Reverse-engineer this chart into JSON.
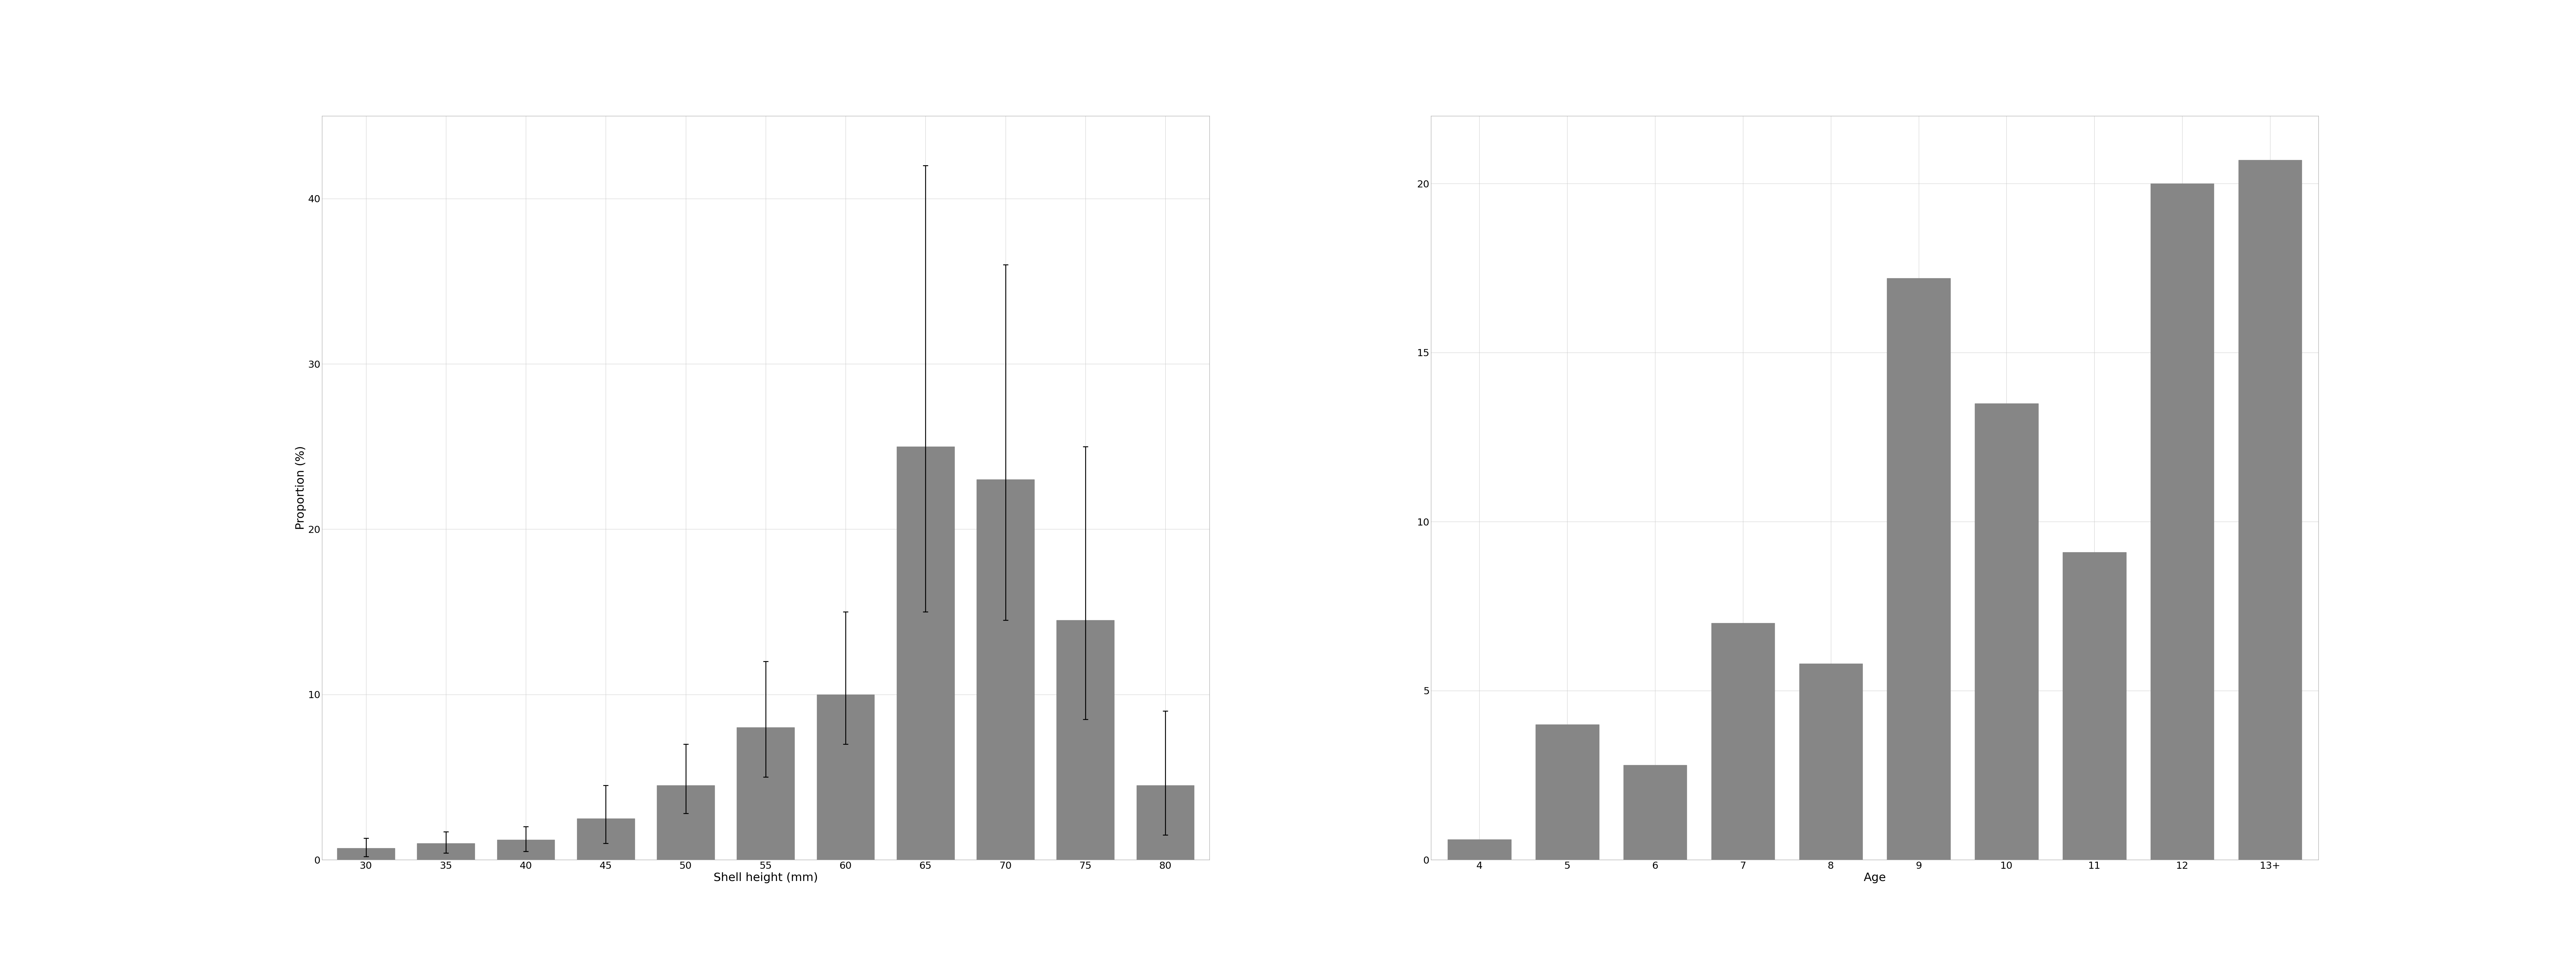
{
  "left": {
    "categories": [
      30,
      35,
      40,
      45,
      50,
      55,
      60,
      65,
      70,
      75,
      80
    ],
    "values": [
      0.7,
      1.0,
      1.2,
      2.5,
      4.5,
      8.0,
      10.0,
      25.0,
      23.0,
      14.5,
      4.5
    ],
    "ci_low": [
      0.2,
      0.4,
      0.5,
      1.0,
      2.8,
      5.0,
      7.0,
      15.0,
      14.5,
      8.5,
      1.5
    ],
    "ci_high": [
      1.3,
      1.7,
      2.0,
      4.5,
      7.0,
      12.0,
      15.0,
      42.0,
      36.0,
      25.0,
      9.0
    ],
    "xlabel": "Shell height (mm)",
    "ylabel": "Proportion (%)",
    "ylim": [
      0,
      45
    ],
    "yticks": [
      0,
      10,
      20,
      30,
      40
    ],
    "bar_color": "#868686",
    "ci_color": "#000000"
  },
  "right": {
    "categories": [
      "4",
      "5",
      "6",
      "7",
      "8",
      "9",
      "10",
      "11",
      "12",
      "13+"
    ],
    "values": [
      0.6,
      4.0,
      2.8,
      7.0,
      5.8,
      17.2,
      13.5,
      9.1,
      20.0,
      20.7
    ],
    "xlabel": "Age",
    "ylabel": "",
    "ylim": [
      0,
      22
    ],
    "yticks": [
      0,
      5,
      10,
      15,
      20
    ],
    "bar_color": "#868686"
  },
  "background_color": "#ffffff",
  "grid_color": "#cccccc",
  "grid_linewidth": 0.8,
  "spine_color": "#aaaaaa",
  "tick_fontsize": 22,
  "label_fontsize": 26,
  "bar_width": 0.72,
  "capsize": 6,
  "cap_linewidth": 2.0,
  "err_linewidth": 2.0,
  "fig_width": 80,
  "fig_height": 30
}
